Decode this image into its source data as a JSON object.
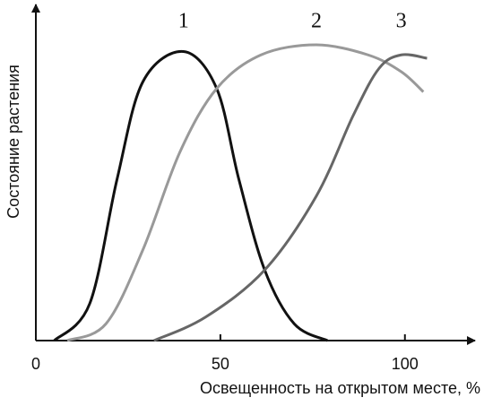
{
  "chart_data": {
    "type": "line",
    "x_label": "Освещенность на открытом месте, %",
    "y_label": "Состояние растения",
    "xlim": [
      0,
      119
    ],
    "xticks": [
      0,
      50,
      100
    ],
    "ylim": [
      0,
      100
    ],
    "series": [
      {
        "name": "1",
        "color": "#111111",
        "x": [
          5,
          14.6,
          22,
          29,
          40,
          49,
          55,
          62,
          70,
          79
        ],
        "values": [
          0,
          11,
          48,
          77,
          86,
          75,
          48,
          21,
          5,
          0
        ]
      },
      {
        "name": "2",
        "color": "#999999",
        "x": [
          8.5,
          19,
          29,
          39,
          49,
          61,
          76,
          90,
          99,
          105
        ],
        "values": [
          0,
          5,
          27,
          56,
          75,
          85,
          88,
          85,
          80,
          74
        ]
      },
      {
        "name": "3",
        "color": "#666666",
        "x": [
          32,
          46,
          62,
          76,
          86,
          93,
          99,
          106
        ],
        "values": [
          0,
          7,
          21,
          43,
          67,
          81,
          85,
          84
        ]
      }
    ]
  }
}
